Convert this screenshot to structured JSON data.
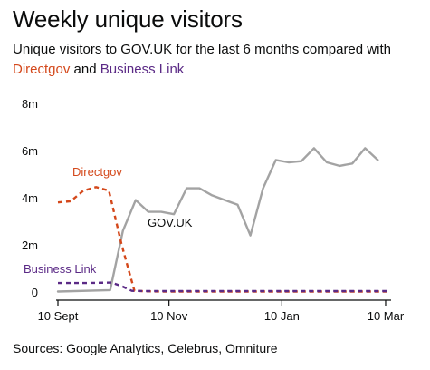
{
  "header": {
    "title": "Weekly unique visitors",
    "subtitle_prefix": "Unique visitors to GOV.UK for the last 6 months compared with",
    "subtitle_dg": "Directgov",
    "subtitle_and": " and ",
    "subtitle_bl": "Business Link"
  },
  "source": "Sources: Google Analytics, Celebrus, Omniture",
  "colors": {
    "govuk": "#a3a3a3",
    "directgov": "#d4481b",
    "businesslink": "#5b2a86",
    "axis": "#0b0c0c"
  },
  "chart_data": {
    "type": "line",
    "title": "Weekly unique visitors",
    "xlabel": "",
    "ylabel": "",
    "y_unit": "m",
    "ylim": [
      0,
      8
    ],
    "y_ticks": [
      {
        "value": 0,
        "label": "0"
      },
      {
        "value": 2,
        "label": "2m"
      },
      {
        "value": 4,
        "label": "4m"
      },
      {
        "value": 6,
        "label": "6m"
      },
      {
        "value": 8,
        "label": "8m"
      }
    ],
    "xlim": [
      0,
      26
    ],
    "x_ticks": [
      {
        "value": 0,
        "label": "10 Sept"
      },
      {
        "value": 8.714,
        "label": "10 Nov"
      },
      {
        "value": 17.571,
        "label": "10 Jan"
      },
      {
        "value": 25.714,
        "label": "10 Mar"
      }
    ],
    "grid": false,
    "legend": "inline labels",
    "series": [
      {
        "name": "GOV.UK",
        "style": "solid",
        "points": [
          [
            0,
            0.02
          ],
          [
            4.1,
            0.08
          ],
          [
            5.1,
            2.6
          ],
          [
            6.1,
            3.9
          ],
          [
            7.1,
            3.4
          ],
          [
            8.1,
            3.4
          ],
          [
            9.1,
            3.3
          ],
          [
            10.1,
            4.4
          ],
          [
            11.1,
            4.4
          ],
          [
            12.1,
            4.1
          ],
          [
            13.1,
            3.9
          ],
          [
            14.1,
            3.7
          ],
          [
            15.1,
            2.4
          ],
          [
            16.1,
            4.4
          ],
          [
            17.1,
            5.6
          ],
          [
            18.1,
            5.5
          ],
          [
            19.1,
            5.55
          ],
          [
            20.1,
            6.1
          ],
          [
            21.1,
            5.5
          ],
          [
            22.1,
            5.35
          ],
          [
            23.1,
            5.45
          ],
          [
            24.1,
            6.1
          ],
          [
            25.1,
            5.6
          ]
        ]
      },
      {
        "name": "Directgov",
        "style": "dashed",
        "points": [
          [
            0,
            3.8
          ],
          [
            1,
            3.85
          ],
          [
            2,
            4.3
          ],
          [
            3,
            4.45
          ],
          [
            4,
            4.3
          ],
          [
            5,
            2.0
          ],
          [
            6,
            0.05
          ],
          [
            7,
            0.03
          ],
          [
            8,
            0.02
          ],
          [
            10,
            0.02
          ],
          [
            14,
            0.02
          ],
          [
            18,
            0.02
          ],
          [
            22,
            0.02
          ],
          [
            25.8,
            0.02
          ]
        ]
      },
      {
        "name": "Business Link",
        "style": "dashed",
        "points": [
          [
            0,
            0.38
          ],
          [
            2,
            0.38
          ],
          [
            4.2,
            0.4
          ],
          [
            5,
            0.25
          ],
          [
            5.8,
            0.05
          ],
          [
            7,
            0.04
          ],
          [
            10,
            0.04
          ],
          [
            14,
            0.04
          ],
          [
            18,
            0.04
          ],
          [
            22,
            0.04
          ],
          [
            25.8,
            0.04
          ]
        ]
      }
    ],
    "annotations": [
      {
        "text": "Directgov",
        "series": "Directgov"
      },
      {
        "text": "GOV.UK",
        "series": "GOV.UK"
      },
      {
        "text": "Business Link",
        "series": "Business Link"
      }
    ]
  }
}
